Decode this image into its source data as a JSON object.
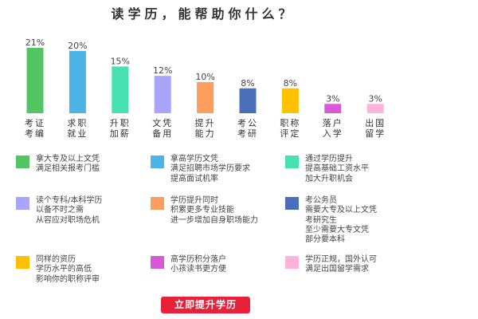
{
  "chart_data": {
    "type": "bar",
    "title": "读学历，能帮助你什么？",
    "categories": [
      "考证\n考编",
      "求职\n就业",
      "升职\n加薪",
      "文凭\n备用",
      "提升\n能力",
      "考公\n考研",
      "职称\n评定",
      "落户\n入学",
      "出国\n留学"
    ],
    "values": [
      21,
      20,
      15,
      12,
      10,
      8,
      8,
      3,
      3
    ],
    "value_labels": [
      "21%",
      "20%",
      "15%",
      "12%",
      "10%",
      "8%",
      "8%",
      "3%",
      "3%"
    ],
    "colors": [
      "#52c462",
      "#4db5e5",
      "#47e0b0",
      "#aaa4fb",
      "#ff9d5c",
      "#4a6fba",
      "#ffc000",
      "#d957d9",
      "#ffb3da"
    ],
    "ylim": [
      0,
      21
    ],
    "grid": false,
    "xlabel": "",
    "ylabel": ""
  },
  "legend": [
    {
      "color": "#52c462",
      "lines": [
        "拿大专及以上文凭",
        "满足相关报考门槛"
      ]
    },
    {
      "color": "#4db5e5",
      "lines": [
        "拿高学历文凭",
        "满足招聘市场学历要求",
        "提高面试机率"
      ]
    },
    {
      "color": "#47e0b0",
      "lines": [
        "通过学历提升",
        "提高基础工资水平",
        "加大升职机会"
      ]
    },
    {
      "color": "#aaa4fb",
      "lines": [
        "读个专科/本科学历",
        "以备不时之需",
        "从容应对职场危机"
      ]
    },
    {
      "color": "#ff9d5c",
      "lines": [
        "学历提升同时",
        "积累更多专业技能",
        "进一步增加自身职场能力"
      ]
    },
    {
      "color": "#4a6fba",
      "lines": [
        "考公务员",
        "需要大专及以上文凭",
        "考研究生",
        "至少需要大专文凭",
        "部分要本科"
      ]
    },
    {
      "color": "#ffc000",
      "lines": [
        "同样的资历",
        "学历水平的高低",
        "影响你的职称评审"
      ]
    },
    {
      "color": "#d957d9",
      "lines": [
        "高学历积分落户",
        "小孩读书更方便"
      ]
    },
    {
      "color": "#ffb3da",
      "lines": [
        "学历正规，国外认可",
        "满足出国留学需求"
      ]
    }
  ],
  "cta": {
    "label": "立即提升学历",
    "color": "#e8203a"
  }
}
